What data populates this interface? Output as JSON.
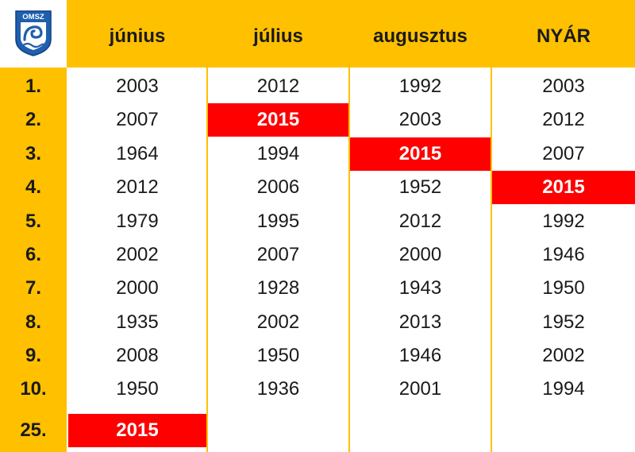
{
  "logo_text": "OMSZ",
  "colors": {
    "header": "#ffc000",
    "highlight": "#ff0000",
    "highlight_text": "#ffffff"
  },
  "headers": [
    "június",
    "július",
    "augusztus",
    "NYÁR"
  ],
  "ranks": [
    "1.",
    "2.",
    "3.",
    "4.",
    "5.",
    "6.",
    "7.",
    "8.",
    "9.",
    "10.",
    "25."
  ],
  "columns": [
    [
      "2003",
      "2007",
      "1964",
      "2012",
      "1979",
      "2002",
      "2000",
      "1935",
      "2008",
      "1950",
      "2015"
    ],
    [
      "2012",
      "2015",
      "1994",
      "2006",
      "1995",
      "2007",
      "1928",
      "2002",
      "1950",
      "1936",
      ""
    ],
    [
      "1992",
      "2003",
      "2015",
      "1952",
      "2012",
      "2000",
      "1943",
      "2013",
      "1946",
      "2001",
      ""
    ],
    [
      "2003",
      "2012",
      "2007",
      "2015",
      "1992",
      "1946",
      "1950",
      "1952",
      "2002",
      "1994",
      ""
    ]
  ],
  "highlight_year": "2015"
}
